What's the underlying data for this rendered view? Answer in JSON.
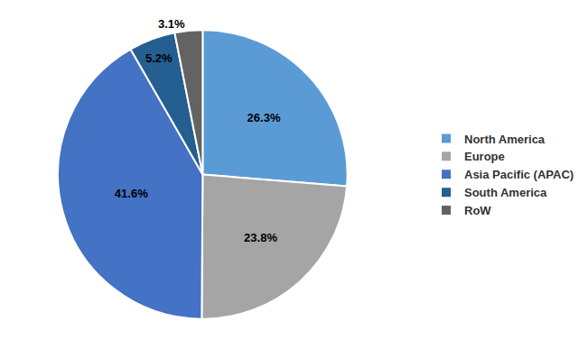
{
  "chart_data": {
    "type": "pie",
    "categories": [
      "North America",
      "Europe",
      "Asia Pacific (APAC)",
      "South America",
      "RoW"
    ],
    "values": [
      26.3,
      23.8,
      41.6,
      5.2,
      3.1
    ],
    "value_labels": [
      "26.3%",
      "23.8%",
      "41.6%",
      "5.2%",
      "3.1%"
    ],
    "colors": [
      "#5b9bd5",
      "#a5a5a5",
      "#4472c4",
      "#255e91",
      "#636363"
    ],
    "data_labels": true,
    "legend": "right"
  }
}
